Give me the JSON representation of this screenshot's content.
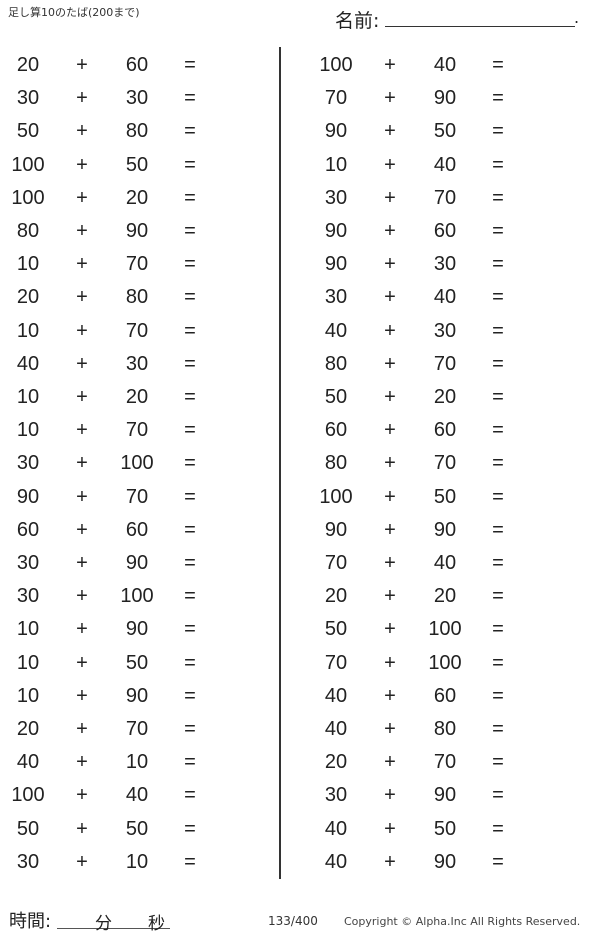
{
  "header": {
    "title": "足し算10のたば(200まで)",
    "name_label": "名前:",
    "name_end": "."
  },
  "operator": "+",
  "equals": "=",
  "left_column": [
    [
      "20",
      "60"
    ],
    [
      "30",
      "30"
    ],
    [
      "50",
      "80"
    ],
    [
      "100",
      "50"
    ],
    [
      "100",
      "20"
    ],
    [
      "80",
      "90"
    ],
    [
      "10",
      "70"
    ],
    [
      "20",
      "80"
    ],
    [
      "10",
      "70"
    ],
    [
      "40",
      "30"
    ],
    [
      "10",
      "20"
    ],
    [
      "10",
      "70"
    ],
    [
      "30",
      "100"
    ],
    [
      "90",
      "70"
    ],
    [
      "60",
      "60"
    ],
    [
      "30",
      "90"
    ],
    [
      "30",
      "100"
    ],
    [
      "10",
      "90"
    ],
    [
      "10",
      "50"
    ],
    [
      "10",
      "90"
    ],
    [
      "20",
      "70"
    ],
    [
      "40",
      "10"
    ],
    [
      "100",
      "40"
    ],
    [
      "50",
      "50"
    ],
    [
      "30",
      "10"
    ]
  ],
  "right_column": [
    [
      "100",
      "40"
    ],
    [
      "70",
      "90"
    ],
    [
      "90",
      "50"
    ],
    [
      "10",
      "40"
    ],
    [
      "30",
      "70"
    ],
    [
      "90",
      "60"
    ],
    [
      "90",
      "30"
    ],
    [
      "30",
      "40"
    ],
    [
      "40",
      "30"
    ],
    [
      "80",
      "70"
    ],
    [
      "50",
      "20"
    ],
    [
      "60",
      "60"
    ],
    [
      "80",
      "70"
    ],
    [
      "100",
      "50"
    ],
    [
      "90",
      "90"
    ],
    [
      "70",
      "40"
    ],
    [
      "20",
      "20"
    ],
    [
      "50",
      "100"
    ],
    [
      "70",
      "100"
    ],
    [
      "40",
      "60"
    ],
    [
      "40",
      "80"
    ],
    [
      "20",
      "70"
    ],
    [
      "30",
      "90"
    ],
    [
      "40",
      "50"
    ],
    [
      "40",
      "90"
    ]
  ],
  "footer": {
    "time_label": "時間:",
    "minutes": "分",
    "seconds": "秒",
    "page": "133/400",
    "copyright": "Copyright ©  Alpha.Inc All Rights Reserved."
  }
}
